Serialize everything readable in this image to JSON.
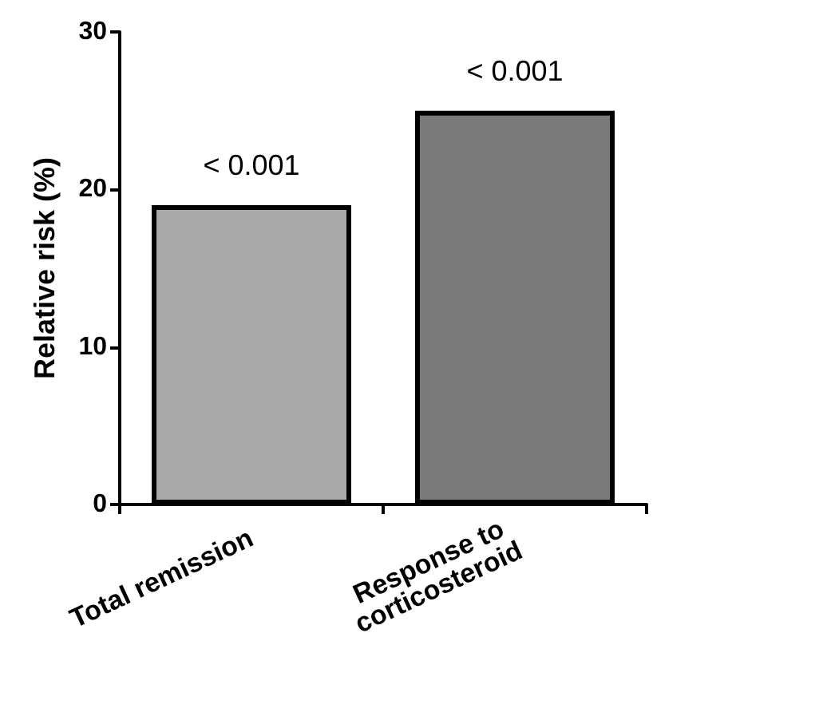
{
  "chart_data": {
    "type": "bar",
    "ylabel": "Relative risk (%)",
    "categories": [
      "Total remission",
      "Response to corticosteroid"
    ],
    "values": [
      19,
      25
    ],
    "colors": [
      "#a8a8a8",
      "#7a7a7a"
    ],
    "ylim": [
      0,
      30
    ],
    "yticks": [
      0,
      10,
      20,
      30
    ],
    "grid": false,
    "annotations": [
      {
        "text": "< 0.001",
        "x": "Total remission",
        "y": 19
      },
      {
        "text": "< 0.001",
        "x": "Response to corticosteroid",
        "y": 25
      }
    ]
  }
}
